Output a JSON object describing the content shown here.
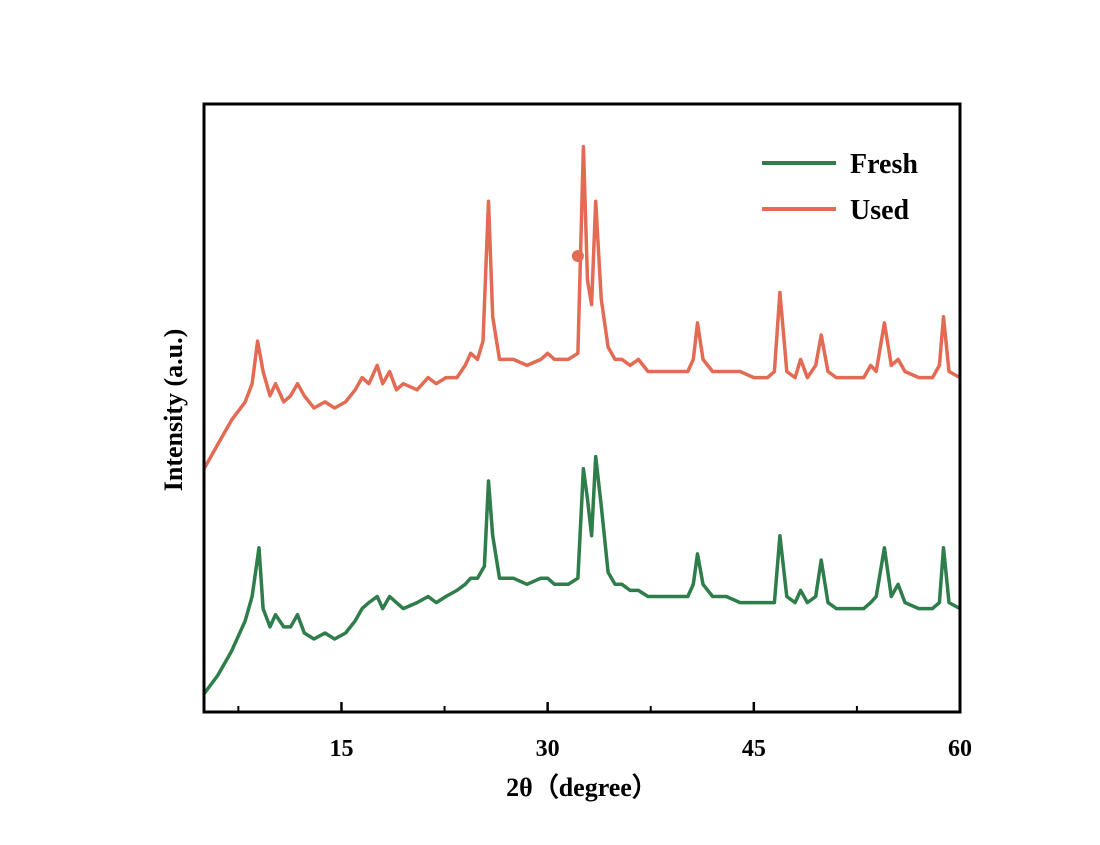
{
  "chart_data": {
    "type": "line",
    "xlabel": "2θ（degree）",
    "ylabel": "Intensity (a.u.)",
    "xlim": [
      5,
      60
    ],
    "x_major_ticks": [
      15,
      30,
      45,
      60
    ],
    "x_tick_labels": [
      "15",
      "30",
      "45",
      "60"
    ],
    "x_minor_ticks": [
      7.5,
      22.5,
      37.5,
      52.5
    ],
    "y_ticks_shown": false,
    "ylim": [
      0,
      100
    ],
    "grid": false,
    "legend_position": "top-right",
    "series": [
      {
        "name": "Fresh",
        "color": "#2e7d4a",
        "points": [
          [
            5,
            3
          ],
          [
            6,
            6
          ],
          [
            7,
            10
          ],
          [
            8,
            15
          ],
          [
            8.5,
            19
          ],
          [
            9,
            27
          ],
          [
            9.3,
            17
          ],
          [
            9.8,
            14
          ],
          [
            10.2,
            16
          ],
          [
            10.8,
            14
          ],
          [
            11.3,
            14
          ],
          [
            11.8,
            16
          ],
          [
            12.3,
            13
          ],
          [
            13,
            12
          ],
          [
            13.8,
            13
          ],
          [
            14.5,
            12
          ],
          [
            15.3,
            13
          ],
          [
            16,
            15
          ],
          [
            16.5,
            17
          ],
          [
            17,
            18
          ],
          [
            17.6,
            19
          ],
          [
            18,
            17
          ],
          [
            18.5,
            19
          ],
          [
            19,
            18
          ],
          [
            19.5,
            17
          ],
          [
            20.5,
            18
          ],
          [
            21.3,
            19
          ],
          [
            21.9,
            18
          ],
          [
            22.6,
            19
          ],
          [
            23.4,
            20
          ],
          [
            24,
            21
          ],
          [
            24.4,
            22
          ],
          [
            24.9,
            22
          ],
          [
            25.4,
            24
          ],
          [
            25.7,
            38
          ],
          [
            26,
            29
          ],
          [
            26.5,
            22
          ],
          [
            27.5,
            22
          ],
          [
            28.5,
            21
          ],
          [
            29.5,
            22
          ],
          [
            30,
            22
          ],
          [
            30.5,
            21
          ],
          [
            31.5,
            21
          ],
          [
            32.2,
            22
          ],
          [
            32.6,
            40
          ],
          [
            32.9,
            35
          ],
          [
            33.2,
            29
          ],
          [
            33.5,
            42
          ],
          [
            33.9,
            34
          ],
          [
            34.4,
            23
          ],
          [
            34.9,
            21
          ],
          [
            35.4,
            21
          ],
          [
            36,
            20
          ],
          [
            36.6,
            20
          ],
          [
            37.3,
            19
          ],
          [
            38,
            19
          ],
          [
            39,
            19
          ],
          [
            40.2,
            19
          ],
          [
            40.6,
            21
          ],
          [
            40.9,
            26
          ],
          [
            41.3,
            21
          ],
          [
            42,
            19
          ],
          [
            43,
            19
          ],
          [
            44,
            18
          ],
          [
            45,
            18
          ],
          [
            46,
            18
          ],
          [
            46.5,
            18
          ],
          [
            46.9,
            29
          ],
          [
            47.4,
            19
          ],
          [
            48,
            18
          ],
          [
            48.4,
            20
          ],
          [
            48.9,
            18
          ],
          [
            49.5,
            19
          ],
          [
            49.9,
            25
          ],
          [
            50.4,
            18
          ],
          [
            51,
            17
          ],
          [
            52,
            17
          ],
          [
            53,
            17
          ],
          [
            53.5,
            18
          ],
          [
            53.9,
            19
          ],
          [
            54.5,
            27
          ],
          [
            55,
            19
          ],
          [
            55.5,
            21
          ],
          [
            56,
            18
          ],
          [
            57,
            17
          ],
          [
            58,
            17
          ],
          [
            58.5,
            18
          ],
          [
            58.8,
            27
          ],
          [
            59.2,
            18
          ],
          [
            60,
            17
          ]
        ]
      },
      {
        "name": "Used",
        "color": "#e36a53",
        "points": [
          [
            5,
            40
          ],
          [
            6,
            44
          ],
          [
            7,
            48
          ],
          [
            8,
            51
          ],
          [
            8.5,
            54
          ],
          [
            8.9,
            61
          ],
          [
            9.3,
            56
          ],
          [
            9.8,
            52
          ],
          [
            10.2,
            54
          ],
          [
            10.8,
            51
          ],
          [
            11.3,
            52
          ],
          [
            11.8,
            54
          ],
          [
            12.3,
            52
          ],
          [
            13,
            50
          ],
          [
            13.8,
            51
          ],
          [
            14.5,
            50
          ],
          [
            15.3,
            51
          ],
          [
            16,
            53
          ],
          [
            16.5,
            55
          ],
          [
            17,
            54
          ],
          [
            17.6,
            57
          ],
          [
            18,
            54
          ],
          [
            18.5,
            56
          ],
          [
            19,
            53
          ],
          [
            19.5,
            54
          ],
          [
            20.5,
            53
          ],
          [
            21.3,
            55
          ],
          [
            21.9,
            54
          ],
          [
            22.6,
            55
          ],
          [
            23.4,
            55
          ],
          [
            24,
            57
          ],
          [
            24.4,
            59
          ],
          [
            24.9,
            58
          ],
          [
            25.3,
            61
          ],
          [
            25.7,
            84
          ],
          [
            26,
            65
          ],
          [
            26.5,
            58
          ],
          [
            27.5,
            58
          ],
          [
            28.5,
            57
          ],
          [
            29.5,
            58
          ],
          [
            30,
            59
          ],
          [
            30.5,
            58
          ],
          [
            31.5,
            58
          ],
          [
            32.2,
            59
          ],
          [
            32.6,
            93
          ],
          [
            32.9,
            71
          ],
          [
            33.2,
            67
          ],
          [
            33.5,
            84
          ],
          [
            33.9,
            68
          ],
          [
            34.4,
            60
          ],
          [
            34.9,
            58
          ],
          [
            35.4,
            58
          ],
          [
            36,
            57
          ],
          [
            36.6,
            58
          ],
          [
            37.3,
            56
          ],
          [
            38,
            56
          ],
          [
            39,
            56
          ],
          [
            40.2,
            56
          ],
          [
            40.6,
            58
          ],
          [
            40.9,
            64
          ],
          [
            41.3,
            58
          ],
          [
            42,
            56
          ],
          [
            43,
            56
          ],
          [
            44,
            56
          ],
          [
            45,
            55
          ],
          [
            46,
            55
          ],
          [
            46.5,
            56
          ],
          [
            46.9,
            69
          ],
          [
            47.4,
            56
          ],
          [
            48,
            55
          ],
          [
            48.4,
            58
          ],
          [
            48.9,
            55
          ],
          [
            49.5,
            57
          ],
          [
            49.9,
            62
          ],
          [
            50.4,
            56
          ],
          [
            51,
            55
          ],
          [
            52,
            55
          ],
          [
            53,
            55
          ],
          [
            53.5,
            57
          ],
          [
            53.9,
            56
          ],
          [
            54.5,
            64
          ],
          [
            55,
            57
          ],
          [
            55.5,
            58
          ],
          [
            56,
            56
          ],
          [
            57,
            55
          ],
          [
            58,
            55
          ],
          [
            58.5,
            57
          ],
          [
            58.8,
            65
          ],
          [
            59.2,
            56
          ],
          [
            60,
            55
          ]
        ]
      }
    ],
    "annotations": [
      {
        "type": "dot-marker",
        "x": 32.2,
        "y": 75,
        "color": "#e36a53"
      }
    ]
  }
}
